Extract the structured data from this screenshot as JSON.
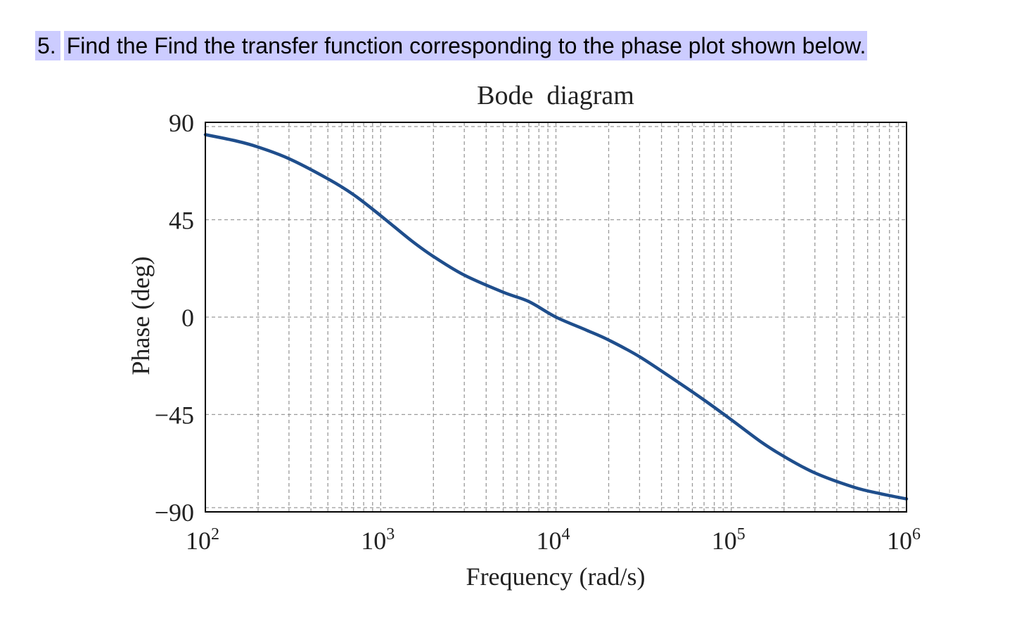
{
  "question": {
    "number": "5.",
    "text": "Find the Find the transfer function corresponding to the phase plot shown below."
  },
  "chart_data": {
    "type": "line",
    "title": "Bode  diagram",
    "xlabel": "Frequency (rad/s)",
    "ylabel": "Phase (deg)",
    "xscale": "log",
    "xlim": [
      100,
      1000000
    ],
    "ylim": [
      -90,
      90
    ],
    "grid": true,
    "x_ticks": [
      {
        "base": "10",
        "exp": "2"
      },
      {
        "base": "10",
        "exp": "3"
      },
      {
        "base": "10",
        "exp": "4"
      },
      {
        "base": "10",
        "exp": "5"
      },
      {
        "base": "10",
        "exp": "6"
      }
    ],
    "y_ticks": [
      "90",
      "45",
      "0",
      "−45",
      "−90"
    ],
    "y_tick_values": [
      90,
      45,
      0,
      -45,
      -90
    ],
    "series": [
      {
        "color": "#1f4e8c",
        "x": [
          100,
          150,
          200,
          300,
          500,
          700,
          1000,
          1500,
          2000,
          3000,
          5000,
          7000,
          10000,
          15000,
          20000,
          30000,
          50000,
          70000,
          100000,
          150000,
          200000,
          300000,
          500000,
          700000,
          1000000
        ],
        "y": [
          84.3,
          81.4,
          78.6,
          73.2,
          63.9,
          56.6,
          46.9,
          35.3,
          28.0,
          19.4,
          11.5,
          7.2,
          0.0,
          -6.1,
          -10.6,
          -18.3,
          -30.2,
          -38.3,
          -47.4,
          -58.0,
          -64.4,
          -72.0,
          -78.6,
          -81.5,
          -84.0
        ]
      }
    ]
  }
}
